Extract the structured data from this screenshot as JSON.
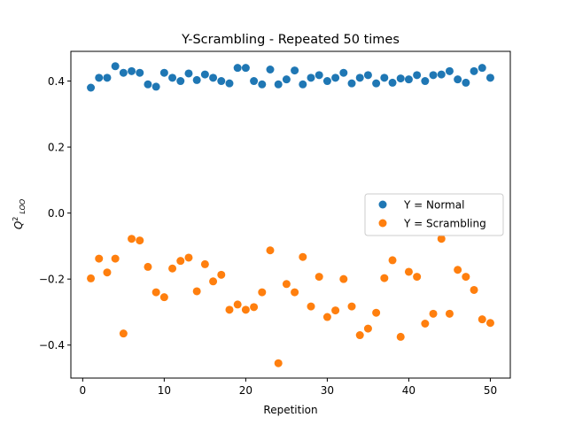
{
  "chart_data": {
    "type": "scatter",
    "title": "Y-Scrambling - Repeated 50 times",
    "xlabel": "Repetition",
    "ylabel_base": "Q",
    "ylabel_sup": "2",
    "ylabel_sub": "LOO",
    "xlim": [
      -1.45,
      52.45
    ],
    "ylim": [
      -0.5,
      0.49
    ],
    "xticks": [
      0,
      10,
      20,
      30,
      40,
      50
    ],
    "yticks": [
      -0.4,
      -0.2,
      0.0,
      0.2,
      0.4
    ],
    "xtick_labels": [
      "0",
      "10",
      "20",
      "30",
      "40",
      "50"
    ],
    "ytick_labels": [
      "−0.4",
      "−0.2",
      "0.0",
      "0.2",
      "0.4"
    ],
    "grid": false,
    "legend_position": "center-right",
    "x": [
      1,
      2,
      3,
      4,
      5,
      6,
      7,
      8,
      9,
      10,
      11,
      12,
      13,
      14,
      15,
      16,
      17,
      18,
      19,
      20,
      21,
      22,
      23,
      24,
      25,
      26,
      27,
      28,
      29,
      30,
      31,
      32,
      33,
      34,
      35,
      36,
      37,
      38,
      39,
      40,
      41,
      42,
      43,
      44,
      45,
      46,
      47,
      48,
      49,
      50
    ],
    "series": [
      {
        "name": "Y = Normal",
        "color": "#1f77b4",
        "values": [
          0.38,
          0.41,
          0.41,
          0.445,
          0.425,
          0.43,
          0.425,
          0.39,
          0.383,
          0.425,
          0.41,
          0.4,
          0.423,
          0.403,
          0.42,
          0.41,
          0.4,
          0.393,
          0.44,
          0.44,
          0.4,
          0.39,
          0.435,
          0.39,
          0.405,
          0.432,
          0.39,
          0.41,
          0.418,
          0.4,
          0.41,
          0.425,
          0.393,
          0.41,
          0.418,
          0.393,
          0.41,
          0.395,
          0.408,
          0.405,
          0.418,
          0.4,
          0.418,
          0.42,
          0.43,
          0.405,
          0.395,
          0.43,
          0.44,
          0.41
        ]
      },
      {
        "name": "Y = Scrambling",
        "color": "#ff7f0e",
        "values": [
          -0.198,
          -0.138,
          -0.18,
          -0.138,
          -0.365,
          -0.078,
          -0.083,
          -0.163,
          -0.24,
          -0.255,
          -0.168,
          -0.145,
          -0.135,
          -0.237,
          -0.155,
          -0.207,
          -0.187,
          -0.293,
          -0.277,
          -0.293,
          -0.285,
          -0.24,
          -0.113,
          -0.455,
          -0.215,
          -0.24,
          -0.133,
          -0.283,
          -0.193,
          -0.315,
          -0.295,
          -0.2,
          -0.283,
          -0.37,
          -0.35,
          -0.302,
          -0.197,
          -0.143,
          -0.375,
          -0.178,
          -0.193,
          -0.335,
          -0.305,
          -0.078,
          -0.305,
          -0.172,
          -0.193,
          -0.233,
          -0.322,
          -0.333
        ]
      }
    ]
  }
}
